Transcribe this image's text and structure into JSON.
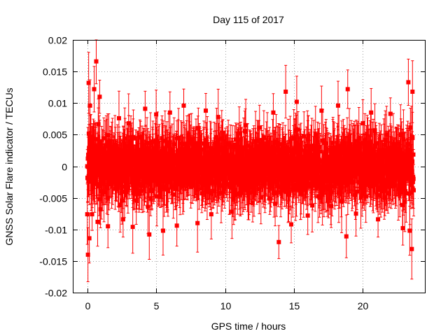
{
  "chart_data": {
    "type": "scatter",
    "title": "Day 115 of 2017",
    "xlabel": "GPS time / hours",
    "ylabel": "GNSS Solar Flare indicator / TECUs",
    "xlim": [
      -1,
      24.5
    ],
    "ylim": [
      -0.02,
      0.02
    ],
    "xticks": [
      0,
      5,
      10,
      15,
      20
    ],
    "xtick_labels": [
      "0",
      "5",
      "10",
      "15",
      "20"
    ],
    "yticks": [
      -0.02,
      -0.015,
      -0.01,
      -0.005,
      0,
      0.005,
      0.01,
      0.015,
      0.02
    ],
    "ytick_labels": [
      "-0.02",
      "-0.015",
      "-0.01",
      "-0.005",
      "0",
      "0.005",
      "0.01",
      "0.015",
      "0.02"
    ],
    "grid": true,
    "marker": "square",
    "error_bars": true,
    "color": "#ff0000",
    "series": [
      {
        "description": "Dense cloud of points with error bars spanning 0–24 h; values mostly within ±0.008 TECU with excursions toward ±0.015",
        "x": [
          0.0,
          0.05,
          0.1,
          0.15,
          0.2,
          0.35,
          0.5,
          0.65,
          0.75,
          0.9,
          1.5,
          2.3,
          2.6,
          3.0,
          3.3,
          4.2,
          4.5,
          5.0,
          5.5,
          6.0,
          6.5,
          7.0,
          8.0,
          8.6,
          9.0,
          9.5,
          10.5,
          11.5,
          12.0,
          12.5,
          13.5,
          13.9,
          14.4,
          14.8,
          15.2,
          16.0,
          17.0,
          17.7,
          18.2,
          18.8,
          18.9,
          19.5,
          20.0,
          20.6,
          21.1,
          22.0,
          22.9,
          23.3,
          23.4,
          23.55,
          23.6
        ],
        "y": [
          0.0,
          -0.014,
          0.0132,
          -0.0114,
          0.0096,
          -0.0076,
          0.0122,
          0.0166,
          -0.0088,
          0.011,
          -0.0095,
          0.0076,
          -0.0084,
          0.0068,
          -0.0096,
          0.0091,
          -0.0108,
          0.0082,
          -0.0102,
          0.0085,
          -0.0094,
          0.0096,
          -0.009,
          0.0088,
          -0.0076,
          0.0078,
          -0.0072,
          0.0065,
          -0.0058,
          0.0061,
          0.0085,
          -0.012,
          0.0118,
          -0.0092,
          0.0102,
          -0.0078,
          0.0088,
          -0.0063,
          0.0096,
          -0.0111,
          0.0122,
          -0.0075,
          0.0068,
          0.0085,
          -0.0084,
          0.0083,
          -0.0098,
          0.0133,
          -0.0102,
          -0.0131,
          0.0118
        ]
      }
    ]
  }
}
